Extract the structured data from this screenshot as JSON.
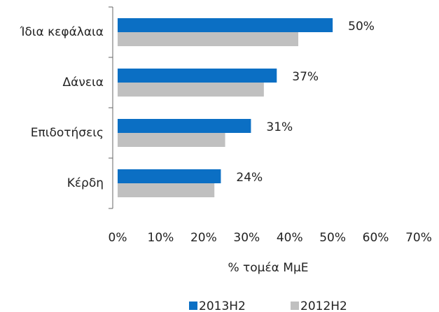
{
  "chart_data": {
    "type": "barh",
    "categories": [
      "Ίδια κεφάλαια",
      "Δάνεια",
      "Επιδοτήσεις",
      "Κέρδη"
    ],
    "series": [
      {
        "name": "2013H2",
        "color": "#0b6fc4",
        "values": [
          50,
          37,
          31,
          24
        ],
        "value_labels": [
          "50%",
          "37%",
          "31%",
          "24%"
        ]
      },
      {
        "name": "2012H2",
        "color": "#c0c0c0",
        "values": [
          42,
          34,
          25,
          22.5
        ]
      }
    ],
    "xlim": [
      0,
      70
    ],
    "xticks": [
      {
        "value": 0,
        "label": "0%"
      },
      {
        "value": 10,
        "label": "10%"
      },
      {
        "value": 20,
        "label": "20%"
      },
      {
        "value": 30,
        "label": "30%"
      },
      {
        "value": 40,
        "label": "40%"
      },
      {
        "value": 50,
        "label": "50%"
      },
      {
        "value": 60,
        "label": "60%"
      },
      {
        "value": 70,
        "label": "70%"
      }
    ],
    "xlabel": "% τομέα ΜμΕ",
    "legend": "bottom"
  }
}
